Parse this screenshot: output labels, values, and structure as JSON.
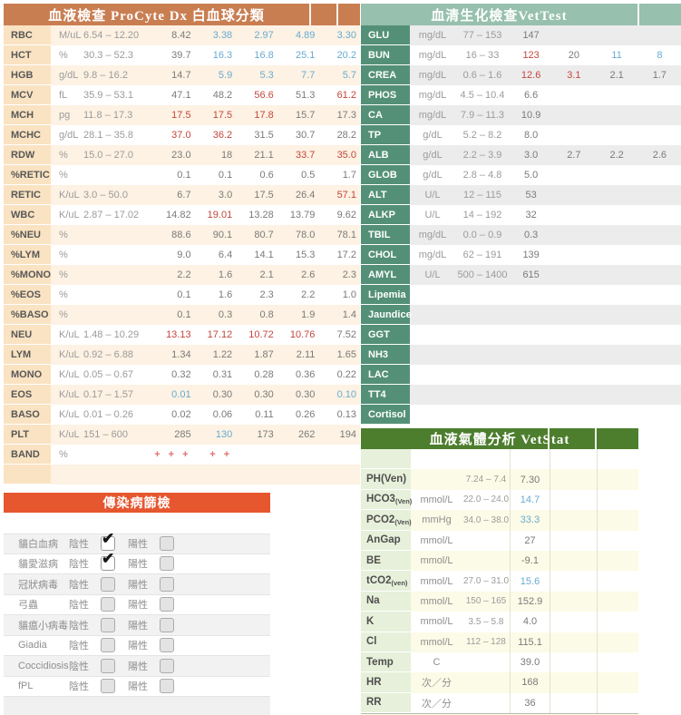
{
  "theme": {
    "procyte_header_bg": "#c97e52",
    "procyte_label_bg": "#fae3c2",
    "procyte_alt_row_bg": "#fdf2e3",
    "vettest_header_bg": "#97c0ae",
    "vettest_label_bg": "#549078",
    "vettest_alt_row_bg": "#ececec",
    "vetstat_header_bg": "#4d7e2e",
    "vetstat_label_bg": "#e7f0da",
    "vetstat_alt_row_bg": "#fbfbe7",
    "infectious_header_bg": "#e6562f",
    "infectious_alt_row_bg": "#f2f2f2",
    "high_value_color": "#c4463c",
    "low_value_color": "#68abd2",
    "band_plus_color": "#e0716a"
  },
  "procyte": {
    "title": "血液檢查 ProCyte Dx 白血球分類",
    "rows": [
      {
        "name": "RBC",
        "unit": "M/uL",
        "range": "6.54 – 12.20",
        "values": [
          {
            "t": "8.42"
          },
          {
            "t": "3.38",
            "c": "lo"
          },
          {
            "t": "2.97",
            "c": "lo"
          },
          {
            "t": "4.89",
            "c": "lo"
          },
          {
            "t": "3.30",
            "c": "lo"
          }
        ]
      },
      {
        "name": "HCT",
        "unit": "%",
        "range": "30.3 – 52.3",
        "values": [
          {
            "t": "39.7"
          },
          {
            "t": "16.3",
            "c": "lo"
          },
          {
            "t": "16.8",
            "c": "lo"
          },
          {
            "t": "25.1",
            "c": "lo"
          },
          {
            "t": "20.2",
            "c": "lo"
          }
        ]
      },
      {
        "name": "HGB",
        "unit": "g/dL",
        "range": "9.8 – 16.2",
        "values": [
          {
            "t": "14.7"
          },
          {
            "t": "5.9",
            "c": "lo"
          },
          {
            "t": "5.3",
            "c": "lo"
          },
          {
            "t": "7.7",
            "c": "lo"
          },
          {
            "t": "5.7",
            "c": "lo"
          }
        ]
      },
      {
        "name": "MCV",
        "unit": "fL",
        "range": "35.9 – 53.1",
        "values": [
          {
            "t": "47.1"
          },
          {
            "t": "48.2"
          },
          {
            "t": "56.6",
            "c": "hi"
          },
          {
            "t": "51.3"
          },
          {
            "t": "61.2",
            "c": "hi"
          }
        ]
      },
      {
        "name": "MCH",
        "unit": "pg",
        "range": "11.8 – 17.3",
        "values": [
          {
            "t": "17.5",
            "c": "hi"
          },
          {
            "t": "17.5",
            "c": "hi"
          },
          {
            "t": "17.8",
            "c": "hi"
          },
          {
            "t": "15.7"
          },
          {
            "t": "17.3"
          }
        ]
      },
      {
        "name": "MCHC",
        "unit": "g/dL",
        "range": "28.1 – 35.8",
        "values": [
          {
            "t": "37.0",
            "c": "hi"
          },
          {
            "t": "36.2",
            "c": "hi"
          },
          {
            "t": "31.5"
          },
          {
            "t": "30.7"
          },
          {
            "t": "28.2"
          }
        ]
      },
      {
        "name": "RDW",
        "unit": "%",
        "range": "15.0 – 27.0",
        "values": [
          {
            "t": "23.0"
          },
          {
            "t": "18"
          },
          {
            "t": "21.1"
          },
          {
            "t": "33.7",
            "c": "hi"
          },
          {
            "t": "35.0",
            "c": "hi"
          }
        ]
      },
      {
        "name": "%RETIC",
        "unit": "%",
        "range": "",
        "values": [
          {
            "t": "0.1"
          },
          {
            "t": "0.1"
          },
          {
            "t": "0.6"
          },
          {
            "t": "0.5"
          },
          {
            "t": "1.7"
          }
        ]
      },
      {
        "name": "RETIC",
        "unit": "K/uL",
        "range": "3.0 – 50.0",
        "values": [
          {
            "t": "6.7"
          },
          {
            "t": "3.0"
          },
          {
            "t": "17.5"
          },
          {
            "t": "26.4"
          },
          {
            "t": "57.1",
            "c": "hi"
          }
        ]
      },
      {
        "name": "WBC",
        "unit": "K/uL",
        "range": "2.87 – 17.02",
        "values": [
          {
            "t": "14.82"
          },
          {
            "t": "19.01",
            "c": "hi"
          },
          {
            "t": "13.28"
          },
          {
            "t": "13.79"
          },
          {
            "t": "9.62"
          }
        ]
      },
      {
        "name": "%NEU",
        "unit": "%",
        "range": "",
        "values": [
          {
            "t": "88.6"
          },
          {
            "t": "90.1"
          },
          {
            "t": "80.7"
          },
          {
            "t": "78.0"
          },
          {
            "t": "78.1"
          }
        ]
      },
      {
        "name": "%LYM",
        "unit": "%",
        "range": "",
        "values": [
          {
            "t": "9.0"
          },
          {
            "t": "6.4"
          },
          {
            "t": "14.1"
          },
          {
            "t": "15.3"
          },
          {
            "t": "17.2"
          }
        ]
      },
      {
        "name": "%MONO",
        "unit": "%",
        "range": "",
        "values": [
          {
            "t": "2.2"
          },
          {
            "t": "1.6"
          },
          {
            "t": "2.1"
          },
          {
            "t": "2.6"
          },
          {
            "t": "2.3"
          }
        ]
      },
      {
        "name": "%EOS",
        "unit": "%",
        "range": "",
        "values": [
          {
            "t": "0.1"
          },
          {
            "t": "1.6"
          },
          {
            "t": "2.3"
          },
          {
            "t": "2.2"
          },
          {
            "t": "1.0"
          }
        ]
      },
      {
        "name": "%BASO",
        "unit": "%",
        "range": "",
        "values": [
          {
            "t": "0.1"
          },
          {
            "t": "0.3"
          },
          {
            "t": "0.8"
          },
          {
            "t": "1.9"
          },
          {
            "t": "1.4"
          }
        ]
      },
      {
        "name": "NEU",
        "unit": "K/uL",
        "range": "1.48 – 10.29",
        "values": [
          {
            "t": "13.13",
            "c": "hi"
          },
          {
            "t": "17.12",
            "c": "hi"
          },
          {
            "t": "10.72",
            "c": "hi"
          },
          {
            "t": "10.76",
            "c": "hi"
          },
          {
            "t": "7.52"
          }
        ]
      },
      {
        "name": "LYM",
        "unit": "K/uL",
        "range": "0.92 – 6.88",
        "values": [
          {
            "t": "1.34"
          },
          {
            "t": "1.22"
          },
          {
            "t": "1.87"
          },
          {
            "t": "2.11"
          },
          {
            "t": "1.65"
          }
        ]
      },
      {
        "name": "MONO",
        "unit": "K/uL",
        "range": "0.05 – 0.67",
        "values": [
          {
            "t": "0.32"
          },
          {
            "t": "0.31"
          },
          {
            "t": "0.28"
          },
          {
            "t": "0.36"
          },
          {
            "t": "0.22"
          }
        ]
      },
      {
        "name": "EOS",
        "unit": "K/uL",
        "range": "0.17 – 1.57",
        "values": [
          {
            "t": "0.01",
            "c": "lo"
          },
          {
            "t": "0.30"
          },
          {
            "t": "0.30"
          },
          {
            "t": "0.30"
          },
          {
            "t": "0.10",
            "c": "lo"
          }
        ]
      },
      {
        "name": "BASO",
        "unit": "K/uL",
        "range": "0.01 – 0.26",
        "values": [
          {
            "t": "0.02"
          },
          {
            "t": "0.06"
          },
          {
            "t": "0.11"
          },
          {
            "t": "0.26"
          },
          {
            "t": "0.13"
          }
        ]
      },
      {
        "name": "PLT",
        "unit": "K/uL",
        "range": "151 – 600",
        "values": [
          {
            "t": "285"
          },
          {
            "t": "130",
            "c": "lo"
          },
          {
            "t": "173"
          },
          {
            "t": "262"
          },
          {
            "t": "194"
          }
        ]
      },
      {
        "name": "BAND",
        "unit": "%",
        "range": "",
        "values": [
          {
            "t": "+ + +",
            "c": "band"
          },
          {
            "t": "+ +",
            "c": "band"
          },
          {
            "t": ""
          },
          {
            "t": ""
          },
          {
            "t": ""
          }
        ]
      }
    ]
  },
  "vettest": {
    "title": "血清生化檢查VetTest",
    "rows": [
      {
        "name": "GLU",
        "unit": "mg/dL",
        "range": "77 – 153",
        "values": [
          {
            "t": "147"
          }
        ]
      },
      {
        "name": "BUN",
        "unit": "mg/dL",
        "range": "16 – 33",
        "values": [
          {
            "t": "123",
            "c": "hi"
          },
          {
            "t": "20"
          },
          {
            "t": "11",
            "c": "lo"
          },
          {
            "t": "8",
            "c": "lo"
          }
        ]
      },
      {
        "name": "CREA",
        "unit": "mg/dL",
        "range": "0.6 – 1.6",
        "values": [
          {
            "t": "12.6",
            "c": "hi"
          },
          {
            "t": "3.1",
            "c": "hi"
          },
          {
            "t": "2.1"
          },
          {
            "t": "1.7"
          }
        ]
      },
      {
        "name": "PHOS",
        "unit": "mg/dL",
        "range": "4.5 – 10.4",
        "values": [
          {
            "t": "6.6"
          }
        ]
      },
      {
        "name": "CA",
        "unit": "mg/dL",
        "range": "7.9 – 11.3",
        "values": [
          {
            "t": "10.9"
          }
        ]
      },
      {
        "name": "TP",
        "unit": "g/dL",
        "range": "5.2 – 8.2",
        "values": [
          {
            "t": "8.0"
          }
        ]
      },
      {
        "name": "ALB",
        "unit": "g/dL",
        "range": "2.2 – 3.9",
        "values": [
          {
            "t": "3.0"
          },
          {
            "t": "2.7"
          },
          {
            "t": "2.2"
          },
          {
            "t": "2.6"
          }
        ]
      },
      {
        "name": "GLOB",
        "unit": "g/dL",
        "range": "2.8 – 4.8",
        "values": [
          {
            "t": "5.0"
          }
        ]
      },
      {
        "name": "ALT",
        "unit": "U/L",
        "range": "12 – 115",
        "values": [
          {
            "t": "53"
          }
        ]
      },
      {
        "name": "ALKP",
        "unit": "U/L",
        "range": "14 – 192",
        "values": [
          {
            "t": "32"
          }
        ]
      },
      {
        "name": "TBIL",
        "unit": "mg/dL",
        "range": "0.0 – 0.9",
        "values": [
          {
            "t": "0.3"
          }
        ]
      },
      {
        "name": "CHOL",
        "unit": "mg/dL",
        "range": "62 – 191",
        "values": [
          {
            "t": "139"
          }
        ]
      },
      {
        "name": "AMYL",
        "unit": "U/L",
        "range": "500 – 1400",
        "values": [
          {
            "t": "615"
          }
        ]
      },
      {
        "name": "Lipemia",
        "unit": "",
        "range": "",
        "values": []
      },
      {
        "name": "Jaundice",
        "unit": "",
        "range": "",
        "values": []
      },
      {
        "name": "GGT",
        "unit": "",
        "range": "",
        "values": []
      },
      {
        "name": "NH3",
        "unit": "",
        "range": "",
        "values": []
      },
      {
        "name": "LAC",
        "unit": "",
        "range": "",
        "values": []
      },
      {
        "name": "TT4",
        "unit": "",
        "range": "",
        "values": []
      },
      {
        "name": "Cortisol",
        "unit": "",
        "range": "",
        "values": []
      }
    ]
  },
  "vetstat": {
    "title": "血液氣體分析 VetStat",
    "rows": [
      {
        "name": "PH(Ven)",
        "sub": "",
        "unit": "",
        "range": "7.24 – 7.4",
        "value": "7.30",
        "c": ""
      },
      {
        "name": "HCO3",
        "sub": "(Ven)",
        "unit": "mmol/L",
        "range": "22.0 – 24.0",
        "value": "14.7",
        "c": "lo"
      },
      {
        "name": "PCO2",
        "sub": "(Ven)",
        "unit": "mmHg",
        "range": "34.0 – 38.0",
        "value": "33.3",
        "c": "lo"
      },
      {
        "name": "AnGap",
        "sub": "",
        "unit": "mmol/L",
        "range": "",
        "value": "27",
        "c": ""
      },
      {
        "name": "BE",
        "sub": "",
        "unit": "mmol/L",
        "range": "",
        "value": "-9.1",
        "c": ""
      },
      {
        "name": "tCO2",
        "sub": "(ven)",
        "unit": "mmol/L",
        "range": "27.0 – 31.0",
        "value": "15.6",
        "c": "lo"
      },
      {
        "name": "Na",
        "sub": "",
        "unit": "mmol/L",
        "range": "150 – 165",
        "value": "152.9",
        "c": ""
      },
      {
        "name": "K",
        "sub": "",
        "unit": "mmol/L",
        "range": "3.5 – 5.8",
        "value": "4.0",
        "c": ""
      },
      {
        "name": "Cl",
        "sub": "",
        "unit": "mmol/L",
        "range": "112 – 128",
        "value": "115.1",
        "c": ""
      },
      {
        "name": "Temp",
        "sub": "",
        "unit": "C",
        "range": "",
        "value": "39.0",
        "c": ""
      },
      {
        "name": "HR",
        "sub": "",
        "unit": "次／分",
        "range": "",
        "value": "168",
        "c": ""
      },
      {
        "name": "RR",
        "sub": "",
        "unit": "次／分",
        "range": "",
        "value": "36",
        "c": ""
      }
    ]
  },
  "infectious": {
    "title": "傳染病篩檢",
    "negative_label": "陰性",
    "positive_label": "陽性",
    "rows": [
      {
        "label": "貓白血病",
        "negative": true,
        "positive": false
      },
      {
        "label": "貓愛滋病",
        "negative": true,
        "positive": false
      },
      {
        "label": "冠狀病毒",
        "negative": false,
        "positive": false
      },
      {
        "label": "弓蟲",
        "negative": false,
        "positive": false
      },
      {
        "label": "貓瘟小病毒",
        "negative": false,
        "positive": false
      },
      {
        "label": "Giadia",
        "negative": false,
        "positive": false
      },
      {
        "label": "Coccidiosis",
        "negative": false,
        "positive": false
      },
      {
        "label": "fPL",
        "negative": false,
        "positive": false
      }
    ]
  }
}
